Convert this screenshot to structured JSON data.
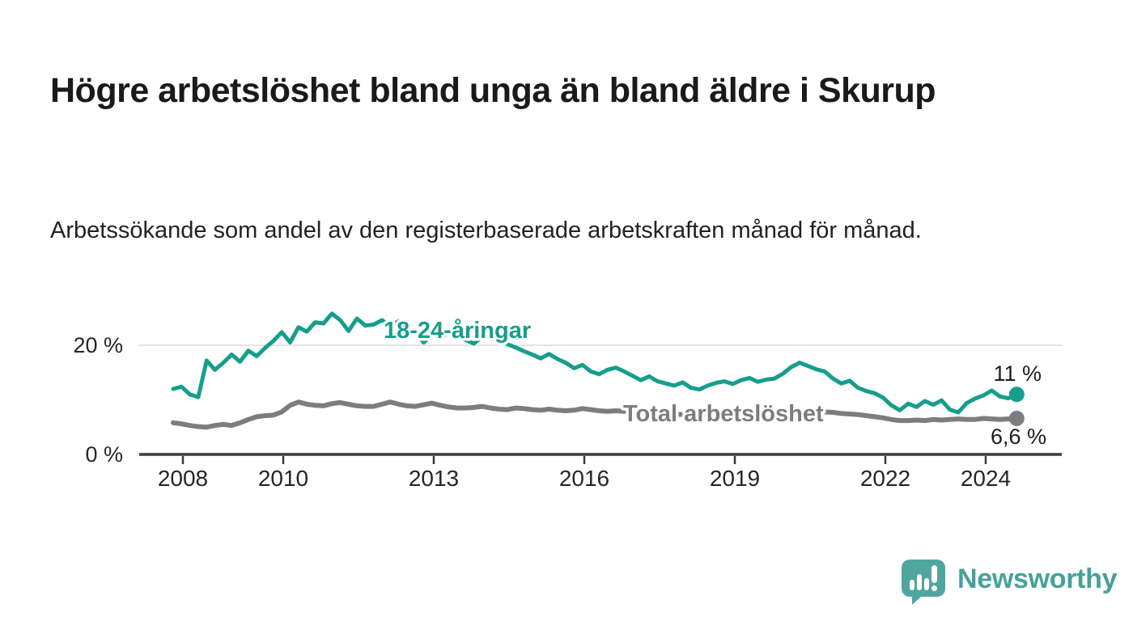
{
  "header": {
    "title": "Högre arbetslöshet bland unga än bland äldre i Skurup",
    "subtitle": "Arbetssökande som andel av den registerbaserade arbetskraften månad för månad."
  },
  "footer": {
    "brand": "Newsworthy",
    "logo_icon": "bar-chart-speech-bubble-icon",
    "brand_color": "#47a19a"
  },
  "colors": {
    "young_series": "#169e8c",
    "total_series": "#7d7d81",
    "axis": "#3a3a3a",
    "gridline": "#dcdcdc",
    "text": "#262626"
  },
  "chart_data": {
    "type": "line",
    "title": "",
    "xlabel": "",
    "ylabel": "",
    "x_unit": "year-month",
    "x_start_year": 2008,
    "x_step_months": 2,
    "x_end_approx": "2024-10",
    "x_ticks": [
      2008,
      2010,
      2013,
      2016,
      2019,
      2022,
      2024
    ],
    "ylim": [
      0,
      27
    ],
    "y_ticks": [
      {
        "value": 0,
        "label": "0 %"
      },
      {
        "value": 20,
        "label": "20 %"
      }
    ],
    "grid": "horizontal-only",
    "legend_position": "inline-labels-on-lines",
    "series": [
      {
        "name": "18-24-åringar",
        "color": "#169e8c",
        "end_value": 11.0,
        "end_label": "11 %",
        "values": [
          12.0,
          12.4,
          11.0,
          10.5,
          17.2,
          15.5,
          16.8,
          18.3,
          17.0,
          19.0,
          18.0,
          19.5,
          20.8,
          22.4,
          20.5,
          23.3,
          22.5,
          24.2,
          24.0,
          25.8,
          24.6,
          22.6,
          24.9,
          23.6,
          23.8,
          24.6,
          23.5,
          24.4,
          23.0,
          22.4,
          20.5,
          22.0,
          21.4,
          22.3,
          21.5,
          21.0,
          20.3,
          21.6,
          22.6,
          21.2,
          20.2,
          19.6,
          18.9,
          18.3,
          17.6,
          18.4,
          17.5,
          16.8,
          15.8,
          16.4,
          15.2,
          14.7,
          15.5,
          15.9,
          15.2,
          14.4,
          13.6,
          14.3,
          13.4,
          13.0,
          12.6,
          13.2,
          12.2,
          11.9,
          12.6,
          13.1,
          13.4,
          12.9,
          13.6,
          14.0,
          13.3,
          13.7,
          13.9,
          14.8,
          16.0,
          16.8,
          16.2,
          15.6,
          15.2,
          13.9,
          13.0,
          13.5,
          12.2,
          11.6,
          11.2,
          10.4,
          9.0,
          8.1,
          9.3,
          8.7,
          9.8,
          9.1,
          9.9,
          8.2,
          7.7,
          9.4,
          10.2,
          10.8,
          11.7,
          10.6,
          10.3,
          11.0
        ]
      },
      {
        "name": "Total arbetslöshet",
        "color": "#7d7d81",
        "end_value": 6.6,
        "end_label": "6,6 %",
        "values": [
          5.8,
          5.6,
          5.3,
          5.1,
          5.0,
          5.3,
          5.5,
          5.3,
          5.8,
          6.4,
          6.9,
          7.1,
          7.2,
          7.8,
          9.0,
          9.6,
          9.2,
          9.0,
          8.9,
          9.3,
          9.5,
          9.2,
          8.9,
          8.8,
          8.8,
          9.2,
          9.6,
          9.2,
          8.9,
          8.8,
          9.1,
          9.4,
          9.0,
          8.7,
          8.5,
          8.5,
          8.6,
          8.8,
          8.5,
          8.3,
          8.2,
          8.5,
          8.4,
          8.2,
          8.1,
          8.3,
          8.1,
          8.0,
          8.1,
          8.4,
          8.2,
          8.0,
          7.9,
          8.0,
          7.9,
          7.7,
          7.5,
          7.7,
          7.5,
          7.6,
          7.4,
          7.3,
          7.1,
          7.3,
          7.2,
          7.4,
          7.3,
          7.2,
          7.4,
          7.3,
          7.5,
          7.4,
          7.5,
          7.8,
          8.1,
          8.0,
          7.9,
          7.8,
          7.8,
          7.7,
          7.5,
          7.4,
          7.3,
          7.1,
          6.9,
          6.7,
          6.4,
          6.2,
          6.2,
          6.3,
          6.2,
          6.4,
          6.3,
          6.4,
          6.5,
          6.4,
          6.4,
          6.6,
          6.5,
          6.4,
          6.5,
          6.6
        ]
      }
    ]
  }
}
